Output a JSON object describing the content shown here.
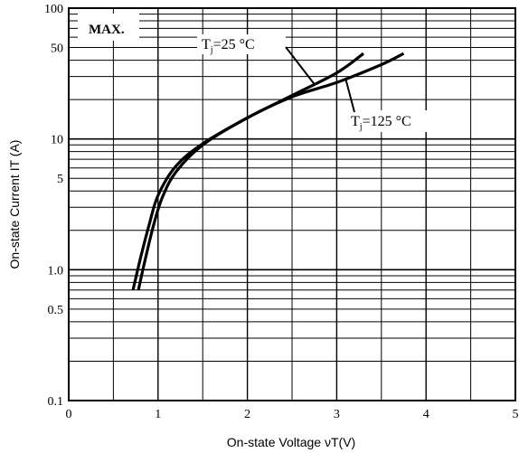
{
  "chart_data": {
    "type": "line",
    "title": "MAX.",
    "xlabel": "On-state Voltage  νT(V)",
    "ylabel": "On-state Current  IT (A)",
    "xlim": [
      0,
      5
    ],
    "ylim": [
      0.1,
      100
    ],
    "yscale": "log",
    "grid": true,
    "x_ticks": [
      "0",
      "1",
      "2",
      "3",
      "4",
      "5"
    ],
    "y_ticks": [
      "0.1",
      "0.5",
      "1.0",
      "5",
      "10",
      "50",
      "100"
    ],
    "series": [
      {
        "name": "Tj=25 °C",
        "points": [
          [
            0.72,
            0.7
          ],
          [
            0.8,
            1.2
          ],
          [
            0.9,
            2.2
          ],
          [
            1.0,
            3.7
          ],
          [
            1.2,
            6.2
          ],
          [
            1.5,
            9.2
          ],
          [
            2.0,
            14.5
          ],
          [
            2.5,
            21.5
          ],
          [
            3.0,
            32.0
          ],
          [
            3.3,
            45.0
          ]
        ]
      },
      {
        "name": "Tj=125 °C",
        "points": [
          [
            0.78,
            0.7
          ],
          [
            0.85,
            1.15
          ],
          [
            0.95,
            2.2
          ],
          [
            1.05,
            3.6
          ],
          [
            1.2,
            5.6
          ],
          [
            1.5,
            9.0
          ],
          [
            2.0,
            14.5
          ],
          [
            2.5,
            21.0
          ],
          [
            3.0,
            27.0
          ],
          [
            3.5,
            37.0
          ],
          [
            3.75,
            45.0
          ]
        ]
      }
    ],
    "annotations": [
      {
        "series": 0,
        "label": "Tj=25 °C",
        "text": "T",
        "sub": "j",
        "rest": "=25 °C"
      },
      {
        "series": 1,
        "label": "Tj=125 °C",
        "text": "T",
        "sub": "j",
        "rest": "=125 °C"
      }
    ]
  }
}
